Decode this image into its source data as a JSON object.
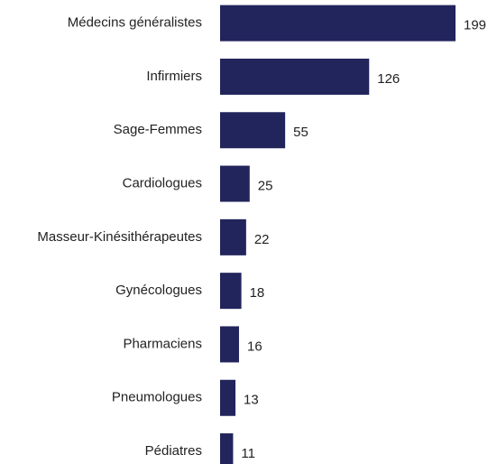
{
  "chart_data": {
    "type": "bar",
    "orientation": "horizontal",
    "categories": [
      "Médecins généralistes",
      "Infirmiers",
      "Sage-Femmes",
      "Cardiologues",
      "Masseur-Kinésithérapeutes",
      "Gynécologues",
      "Pharmaciens",
      "Pneumologues",
      "Pédiatres"
    ],
    "values": [
      199,
      126,
      55,
      25,
      22,
      18,
      16,
      13,
      11
    ],
    "color": "#22245c"
  }
}
